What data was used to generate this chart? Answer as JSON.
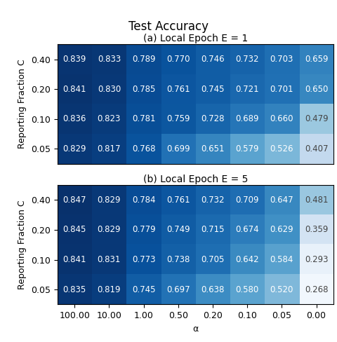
{
  "title": "Test Accuracy",
  "subtitle_a": "(a) Local Epoch E = 1",
  "subtitle_b": "(b) Local Epoch E = 5",
  "xlabel": "α",
  "ylabel": "Reporting Fraction C",
  "x_labels": [
    "100.00",
    "10.00",
    "1.00",
    "0.50",
    "0.20",
    "0.10",
    "0.05",
    "0.00"
  ],
  "y_labels": [
    "0.40",
    "0.20",
    "0.10",
    "0.05"
  ],
  "data_E1": [
    [
      0.839,
      0.833,
      0.789,
      0.77,
      0.746,
      0.732,
      0.703,
      0.659
    ],
    [
      0.841,
      0.83,
      0.785,
      0.761,
      0.745,
      0.721,
      0.701,
      0.65
    ],
    [
      0.836,
      0.823,
      0.781,
      0.759,
      0.728,
      0.689,
      0.66,
      0.479
    ],
    [
      0.829,
      0.817,
      0.768,
      0.699,
      0.651,
      0.579,
      0.526,
      0.407
    ]
  ],
  "data_E5": [
    [
      0.847,
      0.829,
      0.784,
      0.761,
      0.732,
      0.709,
      0.647,
      0.481
    ],
    [
      0.845,
      0.829,
      0.779,
      0.749,
      0.715,
      0.674,
      0.629,
      0.359
    ],
    [
      0.841,
      0.831,
      0.773,
      0.738,
      0.705,
      0.642,
      0.584,
      0.293
    ],
    [
      0.835,
      0.819,
      0.745,
      0.697,
      0.638,
      0.58,
      0.52,
      0.268
    ]
  ],
  "vmin": 0.25,
  "vmax": 0.85,
  "font_size_annot": 8.5,
  "font_size_label": 9,
  "font_size_title": 12,
  "font_size_subtitle": 10,
  "cmap": "Blues"
}
